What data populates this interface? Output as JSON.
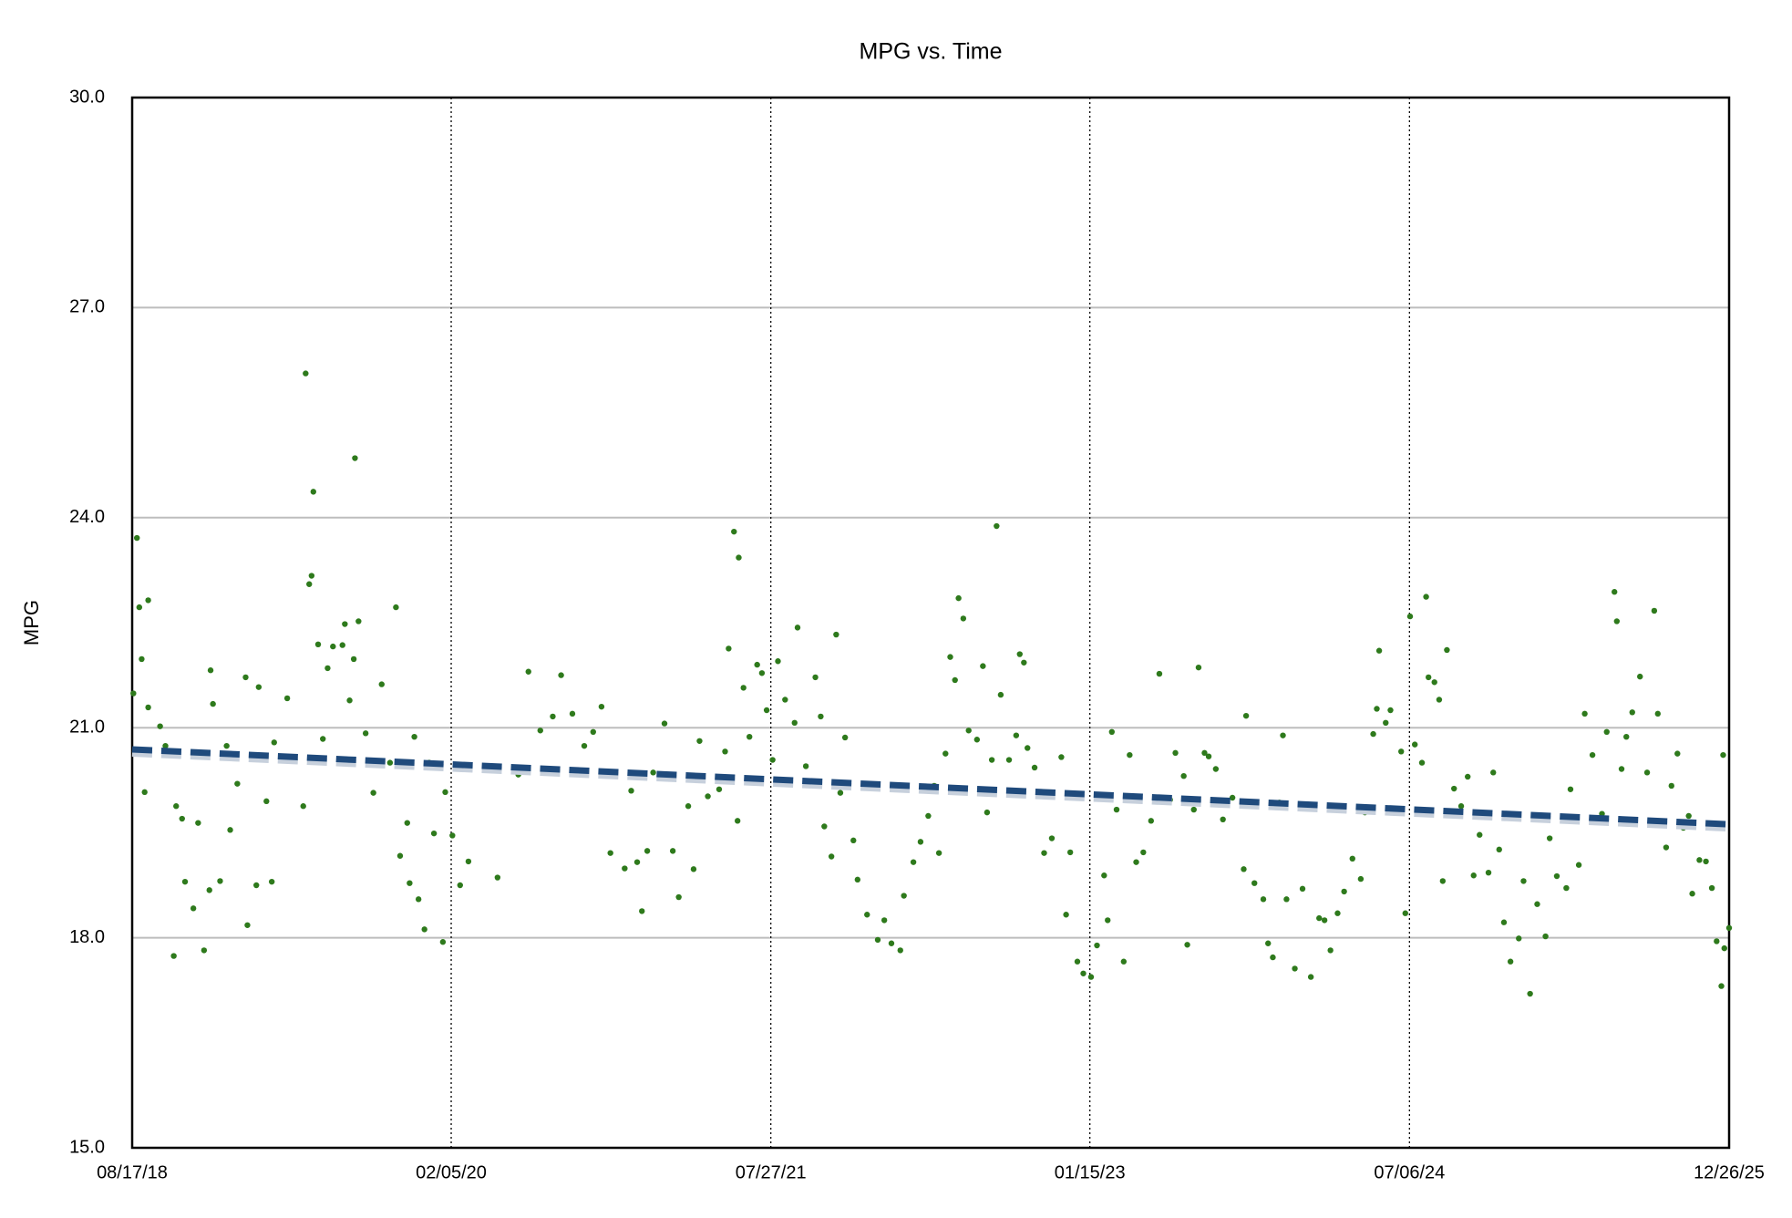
{
  "chart_data": {
    "type": "scatter",
    "title": "MPG vs. Time",
    "y_label": "MPG",
    "color": "#2e7a1c",
    "x": [
      "2018-08-19",
      "2018-08-25",
      "2018-08-29",
      "2018-09-02",
      "2018-09-07",
      "2018-09-13",
      "2018-09-13",
      "2018-10-03",
      "2018-10-12",
      "2018-10-26",
      "2018-10-30",
      "2018-11-09",
      "2018-11-14",
      "2018-11-28",
      "2018-12-06",
      "2018-12-16",
      "2018-12-27",
      "2018-12-31",
      "2018-12-25",
      "2019-01-12",
      "2019-01-23",
      "2019-01-29",
      "2019-02-10",
      "2019-02-24",
      "2019-02-27",
      "2019-03-18",
      "2019-03-14",
      "2019-03-31",
      "2019-04-13",
      "2019-04-09",
      "2019-05-05",
      "2019-05-18",
      "2019-06-01",
      "2019-06-05",
      "2019-06-11",
      "2019-06-15",
      "2019-06-18",
      "2019-06-26",
      "2019-07-04",
      "2019-07-12",
      "2019-07-21",
      "2019-08-06",
      "2019-08-10",
      "2019-08-18",
      "2019-08-25",
      "2019-08-27",
      "2019-09-02",
      "2019-09-14",
      "2019-09-27",
      "2019-10-11",
      "2019-10-25",
      "2019-11-04",
      "2019-11-11",
      "2019-11-23",
      "2019-11-27",
      "2019-12-05",
      "2019-12-12",
      "2019-12-22",
      "2019-12-30",
      "2020-01-07",
      "2020-01-22",
      "2020-01-26",
      "2020-02-07",
      "2020-02-20",
      "2020-03-05",
      "2020-04-23",
      "2020-05-28",
      "2020-06-14",
      "2020-07-04",
      "2020-07-25",
      "2020-08-08",
      "2020-08-27",
      "2020-09-16",
      "2020-10-01",
      "2020-10-15",
      "2020-10-30",
      "2020-11-23",
      "2020-12-04",
      "2020-12-14",
      "2020-12-22",
      "2020-12-31",
      "2021-01-10",
      "2021-01-29",
      "2021-02-12",
      "2021-02-22",
      "2021-03-10",
      "2021-03-19",
      "2021-03-29",
      "2021-04-12",
      "2021-05-01",
      "2021-05-11",
      "2021-05-17",
      "2021-05-26",
      "2021-06-03",
      "2021-06-01",
      "2021-06-11",
      "2021-06-21",
      "2021-07-04",
      "2021-07-12",
      "2021-07-20",
      "2021-07-30",
      "2021-08-08",
      "2021-08-20",
      "2021-09-05",
      "2021-09-10",
      "2021-09-24",
      "2021-10-10",
      "2021-10-19",
      "2021-10-25",
      "2021-11-06",
      "2021-11-14",
      "2021-11-21",
      "2021-11-29",
      "2021-12-13",
      "2021-12-20",
      "2022-01-05",
      "2022-01-23",
      "2022-02-03",
      "2022-02-15",
      "2022-03-02",
      "2022-03-08",
      "2022-03-24",
      "2022-04-05",
      "2022-04-18",
      "2022-04-28",
      "2022-05-06",
      "2022-05-17",
      "2022-05-25",
      "2022-06-02",
      "2022-06-08",
      "2022-06-16",
      "2022-06-25",
      "2022-07-09",
      "2022-07-19",
      "2022-07-26",
      "2022-08-03",
      "2022-08-11",
      "2022-08-18",
      "2022-09-01",
      "2022-09-13",
      "2022-09-19",
      "2022-09-26",
      "2022-10-02",
      "2022-10-14",
      "2022-10-30",
      "2022-11-12",
      "2022-11-28",
      "2022-12-06",
      "2022-12-13",
      "2022-12-25",
      "2023-01-04",
      "2023-01-17",
      "2023-01-27",
      "2023-02-08",
      "2023-02-14",
      "2023-02-21",
      "2023-03-01",
      "2023-03-13",
      "2023-03-23",
      "2023-04-03",
      "2023-04-15",
      "2023-04-28",
      "2023-05-12",
      "2023-05-30",
      "2023-06-08",
      "2023-06-22",
      "2023-06-28",
      "2023-07-09",
      "2023-07-17",
      "2023-07-27",
      "2023-08-03",
      "2023-08-15",
      "2023-08-27",
      "2023-09-12",
      "2023-10-01",
      "2023-10-05",
      "2023-10-19",
      "2023-11-03",
      "2023-11-11",
      "2023-11-19",
      "2023-11-30",
      "2023-12-06",
      "2023-12-12",
      "2023-12-26",
      "2024-01-08",
      "2024-01-22",
      "2024-02-05",
      "2024-02-14",
      "2024-02-24",
      "2024-03-07",
      "2024-03-18",
      "2024-04-01",
      "2024-04-15",
      "2024-04-22",
      "2024-05-06",
      "2024-05-12",
      "2024-05-16",
      "2024-05-27",
      "2024-06-04",
      "2024-06-22",
      "2024-06-29",
      "2024-07-07",
      "2024-07-15",
      "2024-07-27",
      "2024-08-03",
      "2024-08-07",
      "2024-08-17",
      "2024-08-25",
      "2024-08-31",
      "2024-09-07",
      "2024-09-19",
      "2024-10-01",
      "2024-10-12",
      "2024-10-22",
      "2024-11-01",
      "2024-11-16",
      "2024-11-24",
      "2024-12-04",
      "2024-12-12",
      "2024-12-23",
      "2025-01-06",
      "2025-01-14",
      "2025-01-25",
      "2025-02-06",
      "2025-02-20",
      "2025-02-27",
      "2025-03-11",
      "2025-03-27",
      "2025-04-03",
      "2025-04-17",
      "2025-04-27",
      "2025-05-10",
      "2025-05-26",
      "2025-06-03",
      "2025-06-16",
      "2025-06-20",
      "2025-06-28",
      "2025-07-06",
      "2025-07-16",
      "2025-07-29",
      "2025-08-10",
      "2025-08-22",
      "2025-08-28",
      "2025-09-11",
      "2025-09-20",
      "2025-09-30",
      "2025-10-10",
      "2025-10-19",
      "2025-10-25",
      "2025-11-06",
      "2025-11-17",
      "2025-11-27",
      "2025-12-05",
      "2025-12-13",
      "2025-12-18",
      "2025-12-16",
      "2025-12-26"
    ],
    "values": [
      21.49,
      23.71,
      22.72,
      21.98,
      20.08,
      22.82,
      21.29,
      21.02,
      20.74,
      17.74,
      19.88,
      19.7,
      18.8,
      18.42,
      19.64,
      17.82,
      21.82,
      21.34,
      18.68,
      18.81,
      20.74,
      19.54,
      20.2,
      21.72,
      18.18,
      21.58,
      18.75,
      19.95,
      20.79,
      18.8,
      21.42,
      20.54,
      19.88,
      26.06,
      23.05,
      23.17,
      24.37,
      22.19,
      20.84,
      21.85,
      22.16,
      22.18,
      22.48,
      21.39,
      21.98,
      24.85,
      22.52,
      20.92,
      20.07,
      21.62,
      20.5,
      22.72,
      19.17,
      19.64,
      18.78,
      20.87,
      18.55,
      18.12,
      20.5,
      19.49,
      17.94,
      20.08,
      19.46,
      18.75,
      19.09,
      18.86,
      20.33,
      21.8,
      20.96,
      21.16,
      21.75,
      21.2,
      20.74,
      20.94,
      21.3,
      19.21,
      18.99,
      20.1,
      19.08,
      18.38,
      19.24,
      20.36,
      21.06,
      19.24,
      18.58,
      19.88,
      18.98,
      20.81,
      20.02,
      20.12,
      20.66,
      22.13,
      23.8,
      23.43,
      19.67,
      21.57,
      20.87,
      21.9,
      21.78,
      21.25,
      20.54,
      21.95,
      21.4,
      21.07,
      22.43,
      20.45,
      21.72,
      21.16,
      19.59,
      19.16,
      22.33,
      20.07,
      20.86,
      19.39,
      18.83,
      18.33,
      17.97,
      18.25,
      17.92,
      17.82,
      18.6,
      19.08,
      19.37,
      19.74,
      20.17,
      19.21,
      20.63,
      22.01,
      21.68,
      22.85,
      22.56,
      20.96,
      20.83,
      21.88,
      19.79,
      20.54,
      23.88,
      21.47,
      20.54,
      20.89,
      22.05,
      21.93,
      20.71,
      20.43,
      19.21,
      19.42,
      20.58,
      18.33,
      19.22,
      17.66,
      17.49,
      17.44,
      17.89,
      18.89,
      18.25,
      20.94,
      19.83,
      17.66,
      20.61,
      19.08,
      19.22,
      19.67,
      21.77,
      19.97,
      20.64,
      20.31,
      17.9,
      19.83,
      21.86,
      20.64,
      20.59,
      20.41,
      19.69,
      20.0,
      18.98,
      21.17,
      18.78,
      18.55,
      17.92,
      17.72,
      19.93,
      20.89,
      18.55,
      17.56,
      18.7,
      17.44,
      18.28,
      18.25,
      17.82,
      18.35,
      18.66,
      19.13,
      18.84,
      19.79,
      20.91,
      21.27,
      22.1,
      21.07,
      21.25,
      20.66,
      18.35,
      22.59,
      20.76,
      20.5,
      22.87,
      21.72,
      21.65,
      21.4,
      18.81,
      22.11,
      20.13,
      19.88,
      20.3,
      18.89,
      19.47,
      18.93,
      20.36,
      19.26,
      18.22,
      17.66,
      17.99,
      18.81,
      17.2,
      18.48,
      18.02,
      19.42,
      18.88,
      18.71,
      20.12,
      19.04,
      21.2,
      20.61,
      19.77,
      20.94,
      22.94,
      22.52,
      20.41,
      20.87,
      21.22,
      21.73,
      20.36,
      22.67,
      21.2,
      19.29,
      20.17,
      20.63,
      19.57,
      19.74,
      18.63,
      19.11,
      19.09,
      18.71,
      17.95,
      17.31,
      17.85,
      20.61,
      18.14
    ],
    "trendline": {
      "x": [
        "2018-08-17",
        "2025-12-26"
      ],
      "values": [
        20.69,
        19.62
      ],
      "color": "#1f4a7c"
    },
    "xlim": [
      "2018-08-17",
      "2025-12-26"
    ],
    "xticks": [
      {
        "value": "2018-08-17",
        "label": "08/17/18"
      },
      {
        "value": "2020-02-05",
        "label": "02/05/20"
      },
      {
        "value": "2021-07-27",
        "label": "07/27/21"
      },
      {
        "value": "2023-01-15",
        "label": "01/15/23"
      },
      {
        "value": "2024-07-06",
        "label": "07/06/24"
      },
      {
        "value": "2025-12-26",
        "label": "12/26/25"
      }
    ],
    "ylim": [
      15,
      30
    ],
    "yticks": [
      {
        "value": 15,
        "label": "15.0"
      },
      {
        "value": 18,
        "label": "18.0"
      },
      {
        "value": 21,
        "label": "21.0"
      },
      {
        "value": 24,
        "label": "24.0"
      },
      {
        "value": 27,
        "label": "27.0"
      },
      {
        "value": 30,
        "label": "30.0"
      }
    ],
    "grid": true
  }
}
